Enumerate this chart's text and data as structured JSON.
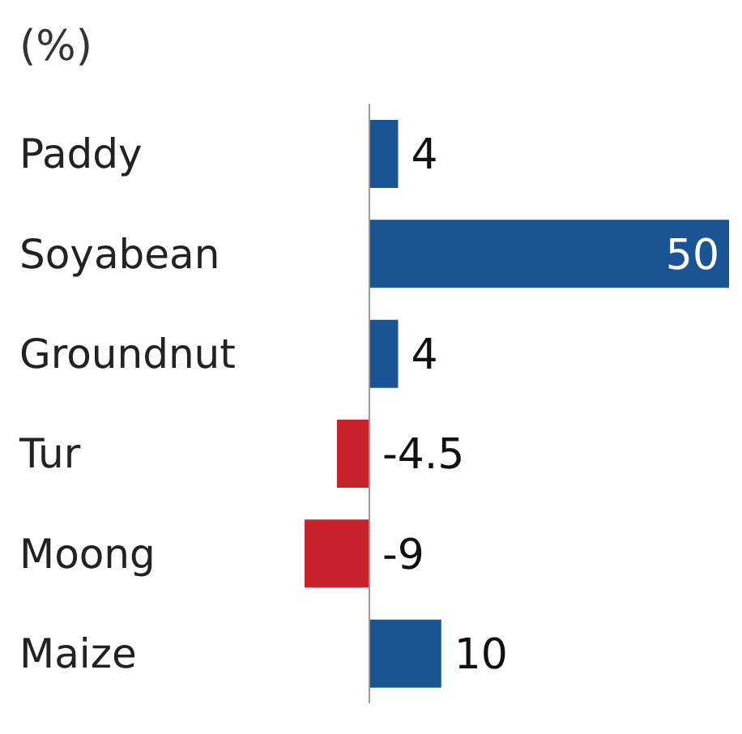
{
  "chart_data": {
    "type": "bar",
    "orientation": "horizontal",
    "subtitle": "(%)",
    "categories": [
      "Paddy",
      "Soyabean",
      "Groundnut",
      "Tur",
      "Moong",
      "Maize"
    ],
    "values": [
      4,
      50,
      4,
      -4.5,
      -9,
      10
    ],
    "colors": [
      "#1b5494",
      "#1b5494",
      "#1b5494",
      "#c8232c",
      "#c8232c",
      "#1b5494"
    ],
    "tick_labels": "y",
    "data_labels": true
  }
}
